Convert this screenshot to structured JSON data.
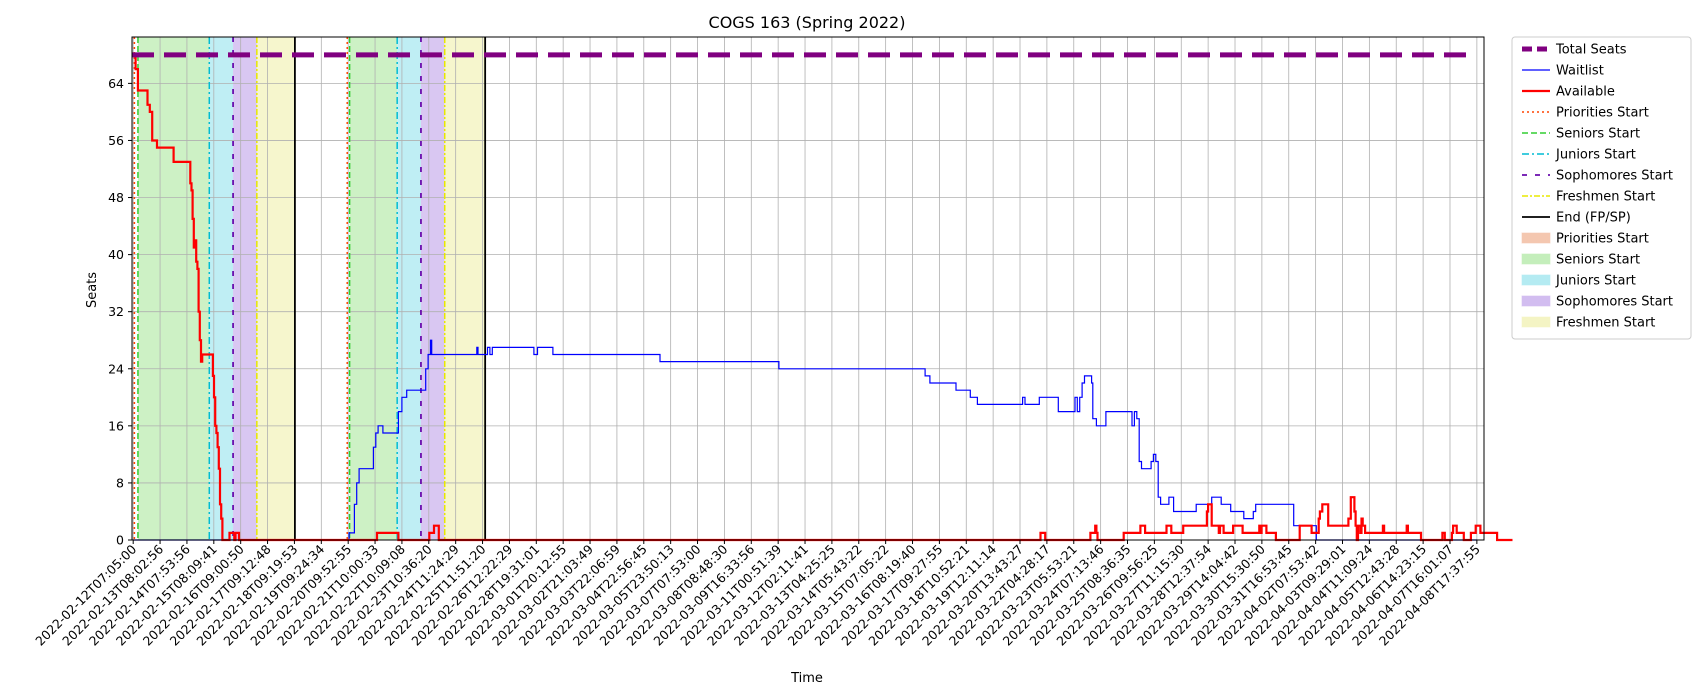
{
  "chart_data": {
    "type": "line",
    "title": "COGS 163 (Spring 2022)",
    "xlabel": "Time",
    "ylabel": "Seats",
    "ylim": [
      0,
      70.5
    ],
    "yticks": [
      0,
      8,
      16,
      24,
      32,
      40,
      48,
      56,
      64
    ],
    "xlim_days": [
      -0.05,
      56.8
    ],
    "x_start": "2022-02-12T07:05:00",
    "grid": true,
    "legend_position": "outside-right",
    "xtick_labels": [
      "2022-02-12T07:05:00",
      "2022-02-13T08:02:56",
      "2022-02-14T07:53:56",
      "2022-02-15T08:09:41",
      "2022-02-16T09:00:50",
      "2022-02-17T09:12:48",
      "2022-02-18T09:19:53",
      "2022-02-19T09:24:34",
      "2022-02-20T09:52:55",
      "2022-02-21T10:00:33",
      "2022-02-22T10:09:08",
      "2022-02-23T10:36:20",
      "2022-02-24T11:24:29",
      "2022-02-25T11:51:20",
      "2022-02-26T12:22:29",
      "2022-02-28T19:31:01",
      "2022-03-01T20:12:55",
      "2022-03-02T21:03:49",
      "2022-03-03T22:06:59",
      "2022-03-04T22:56:45",
      "2022-03-05T23:50:13",
      "2022-03-07T07:53:00",
      "2022-03-08T08:48:30",
      "2022-03-09T16:33:56",
      "2022-03-11T00:51:39",
      "2022-03-12T02:11:41",
      "2022-03-13T04:25:25",
      "2022-03-14T05:43:22",
      "2022-03-15T07:05:22",
      "2022-03-16T08:19:40",
      "2022-03-17T09:27:55",
      "2022-03-18T10:52:21",
      "2022-03-19T12:11:14",
      "2022-03-20T13:43:27",
      "2022-03-22T04:28:17",
      "2022-03-23T05:53:21",
      "2022-03-24T07:13:46",
      "2022-03-25T08:36:35",
      "2022-03-26T09:56:25",
      "2022-03-27T11:15:30",
      "2022-03-28T12:37:54",
      "2022-03-29T14:04:42",
      "2022-03-30T15:30:50",
      "2022-03-31T16:53:45",
      "2022-04-02T07:53:42",
      "2022-04-03T09:29:01",
      "2022-04-04T11:09:24",
      "2022-04-05T12:43:28",
      "2022-04-06T14:23:15",
      "2022-04-07T16:01:07",
      "2022-04-08T17:37:55"
    ],
    "colors": {
      "total": "#800080",
      "waitlist": "#0000ff",
      "available": "#ff0000",
      "priorities": "#ff4500",
      "seniors": "#32cd32",
      "juniors": "#00bcd4",
      "sophomores": "#6a0dad",
      "freshmen": "#e8e800",
      "end": "#000000",
      "grid": "#b0b0b0"
    },
    "legend": [
      {
        "label": "Total Seats",
        "kind": "line",
        "color": "#800080",
        "dash": "10,5",
        "width": 5
      },
      {
        "label": "Waitlist",
        "kind": "line",
        "color": "#0000ff",
        "dash": "",
        "width": 1.2
      },
      {
        "label": "Available",
        "kind": "line",
        "color": "#ff0000",
        "dash": "",
        "width": 2.2
      },
      {
        "label": "Priorities Start",
        "kind": "line",
        "color": "#ff4500",
        "dash": "2,3",
        "width": 1.5
      },
      {
        "label": "Seniors Start",
        "kind": "line",
        "color": "#32cd32",
        "dash": "6,3",
        "width": 1.5
      },
      {
        "label": "Juniors Start",
        "kind": "line",
        "color": "#00bcd4",
        "dash": "7,3,2,3",
        "width": 1.5
      },
      {
        "label": "Sophomores Start",
        "kind": "line",
        "color": "#6a0dad",
        "dash": "5,8",
        "width": 1.8
      },
      {
        "label": "Freshmen Start",
        "kind": "line",
        "color": "#e8e800",
        "dash": "6,2,2,2",
        "width": 1.5
      },
      {
        "label": "End (FP/SP)",
        "kind": "line",
        "color": "#000000",
        "dash": "",
        "width": 1.8
      },
      {
        "label": "Priorities Start",
        "kind": "patch",
        "color": "#f4c7b0"
      },
      {
        "label": "Seniors Start",
        "kind": "patch",
        "color": "#c4eebb"
      },
      {
        "label": "Juniors Start",
        "kind": "patch",
        "color": "#b4ebf2"
      },
      {
        "label": "Sophomores Start",
        "kind": "patch",
        "color": "#d2bdf0"
      },
      {
        "label": "Freshmen Start",
        "kind": "patch",
        "color": "#f4f4c4"
      }
    ],
    "total_seats": 68,
    "shaded_periods": [
      {
        "name": "seniors",
        "start": 0.2,
        "end": 3.2,
        "color": "#c4eebb"
      },
      {
        "name": "juniors",
        "start": 3.2,
        "end": 4.2,
        "color": "#b4ebf2"
      },
      {
        "name": "sophomores",
        "start": 4.2,
        "end": 5.2,
        "color": "#d2bdf0"
      },
      {
        "name": "freshmen",
        "start": 5.2,
        "end": 6.8,
        "color": "#f4f4c4"
      },
      {
        "name": "seniors",
        "start": 9.1,
        "end": 11.1,
        "color": "#c4eebb"
      },
      {
        "name": "juniors",
        "start": 11.1,
        "end": 12.1,
        "color": "#b4ebf2"
      },
      {
        "name": "sophomores",
        "start": 12.1,
        "end": 13.1,
        "color": "#d2bdf0"
      },
      {
        "name": "freshmen",
        "start": 13.1,
        "end": 14.8,
        "color": "#f4f4c4"
      }
    ],
    "markers": [
      {
        "type": "priorities",
        "x": 0.05
      },
      {
        "type": "seniors",
        "x": 0.2
      },
      {
        "type": "juniors",
        "x": 3.2
      },
      {
        "type": "sophomores",
        "x": 4.2
      },
      {
        "type": "freshmen",
        "x": 5.2
      },
      {
        "type": "end",
        "x": 6.8
      },
      {
        "type": "priorities",
        "x": 9.0
      },
      {
        "type": "seniors",
        "x": 9.1
      },
      {
        "type": "juniors",
        "x": 11.1
      },
      {
        "type": "sophomores",
        "x": 12.1
      },
      {
        "type": "freshmen",
        "x": 13.1
      },
      {
        "type": "end",
        "x": 14.8
      }
    ],
    "series": [
      {
        "name": "Waitlist",
        "color": "#0000ff",
        "points": [
          [
            0,
            0
          ],
          [
            9.0,
            0
          ],
          [
            9.08,
            1
          ],
          [
            9.2,
            1
          ],
          [
            9.3,
            5
          ],
          [
            9.4,
            8
          ],
          [
            9.5,
            10
          ],
          [
            10.0,
            10
          ],
          [
            10.1,
            13
          ],
          [
            10.2,
            15
          ],
          [
            10.3,
            16
          ],
          [
            10.5,
            15
          ],
          [
            11.0,
            15
          ],
          [
            11.15,
            18
          ],
          [
            11.3,
            20
          ],
          [
            11.5,
            21
          ],
          [
            12.2,
            21
          ],
          [
            12.3,
            24
          ],
          [
            12.4,
            26
          ],
          [
            12.5,
            28
          ],
          [
            12.55,
            26
          ],
          [
            14.4,
            26
          ],
          [
            14.45,
            27
          ],
          [
            14.5,
            26
          ],
          [
            14.8,
            26
          ],
          [
            14.9,
            27
          ],
          [
            15.0,
            26
          ],
          [
            15.1,
            27
          ],
          [
            16.8,
            27
          ],
          [
            16.85,
            26
          ],
          [
            17.0,
            27
          ],
          [
            17.6,
            27
          ],
          [
            17.65,
            26
          ],
          [
            22.1,
            26
          ],
          [
            22.15,
            25
          ],
          [
            27.1,
            25
          ],
          [
            27.15,
            24
          ],
          [
            33.0,
            24
          ],
          [
            33.3,
            23
          ],
          [
            33.5,
            22
          ],
          [
            34.5,
            22
          ],
          [
            34.6,
            21
          ],
          [
            35.1,
            21
          ],
          [
            35.2,
            20
          ],
          [
            35.5,
            19
          ],
          [
            37.3,
            19
          ],
          [
            37.4,
            20
          ],
          [
            37.5,
            19
          ],
          [
            38.0,
            19
          ],
          [
            38.1,
            20
          ],
          [
            38.8,
            20
          ],
          [
            38.9,
            18
          ],
          [
            39.5,
            18
          ],
          [
            39.6,
            20
          ],
          [
            39.7,
            18
          ],
          [
            39.8,
            20
          ],
          [
            39.9,
            22
          ],
          [
            40.0,
            23
          ],
          [
            40.3,
            22
          ],
          [
            40.35,
            17
          ],
          [
            40.5,
            16
          ],
          [
            40.8,
            16
          ],
          [
            40.9,
            18
          ],
          [
            41.9,
            18
          ],
          [
            42.0,
            16
          ],
          [
            42.1,
            18
          ],
          [
            42.2,
            17
          ],
          [
            42.3,
            11
          ],
          [
            42.4,
            10
          ],
          [
            42.7,
            10
          ],
          [
            42.8,
            11
          ],
          [
            42.9,
            12
          ],
          [
            43.0,
            11
          ],
          [
            43.1,
            6
          ],
          [
            43.2,
            5
          ],
          [
            43.5,
            5
          ],
          [
            43.55,
            6
          ],
          [
            43.7,
            6
          ],
          [
            43.75,
            4
          ],
          [
            44.6,
            4
          ],
          [
            44.7,
            5
          ],
          [
            45.3,
            5
          ],
          [
            45.35,
            6
          ],
          [
            45.7,
            6
          ],
          [
            45.75,
            5
          ],
          [
            46.1,
            5
          ],
          [
            46.15,
            4
          ],
          [
            46.6,
            4
          ],
          [
            46.7,
            3
          ],
          [
            47.0,
            3
          ],
          [
            47.1,
            4
          ],
          [
            47.2,
            5
          ],
          [
            48.7,
            5
          ],
          [
            48.8,
            2
          ],
          [
            49.7,
            2
          ],
          [
            49.75,
            0
          ],
          [
            56.5,
            0
          ]
        ]
      },
      {
        "name": "Available",
        "color": "#ff0000",
        "points": [
          [
            0,
            68
          ],
          [
            0.1,
            66
          ],
          [
            0.2,
            63
          ],
          [
            0.5,
            63
          ],
          [
            0.6,
            61
          ],
          [
            0.7,
            60
          ],
          [
            0.8,
            56
          ],
          [
            0.9,
            56
          ],
          [
            1.0,
            55
          ],
          [
            1.6,
            55
          ],
          [
            1.7,
            53
          ],
          [
            2.3,
            53
          ],
          [
            2.4,
            50
          ],
          [
            2.45,
            49
          ],
          [
            2.5,
            45
          ],
          [
            2.55,
            41
          ],
          [
            2.6,
            42
          ],
          [
            2.65,
            39
          ],
          [
            2.7,
            38
          ],
          [
            2.75,
            32
          ],
          [
            2.8,
            28
          ],
          [
            2.85,
            25
          ],
          [
            2.9,
            26
          ],
          [
            3.3,
            26
          ],
          [
            3.35,
            23
          ],
          [
            3.4,
            20
          ],
          [
            3.45,
            16
          ],
          [
            3.5,
            15
          ],
          [
            3.55,
            13
          ],
          [
            3.6,
            10
          ],
          [
            3.65,
            5
          ],
          [
            3.7,
            3
          ],
          [
            3.75,
            0
          ],
          [
            4.0,
            0
          ],
          [
            4.05,
            1
          ],
          [
            4.2,
            1
          ],
          [
            4.25,
            0
          ],
          [
            4.3,
            1
          ],
          [
            4.4,
            1
          ],
          [
            4.45,
            0
          ],
          [
            10.2,
            0
          ],
          [
            10.25,
            1
          ],
          [
            11.1,
            1
          ],
          [
            11.15,
            0
          ],
          [
            12.4,
            0
          ],
          [
            12.45,
            1
          ],
          [
            12.6,
            1
          ],
          [
            12.65,
            2
          ],
          [
            12.8,
            2
          ],
          [
            12.85,
            0
          ],
          [
            38.1,
            0
          ],
          [
            38.15,
            1
          ],
          [
            38.3,
            1
          ],
          [
            38.35,
            0
          ],
          [
            40.2,
            0
          ],
          [
            40.25,
            1
          ],
          [
            40.4,
            1
          ],
          [
            40.45,
            2
          ],
          [
            40.5,
            1
          ],
          [
            40.55,
            0
          ],
          [
            41.6,
            0
          ],
          [
            41.65,
            1
          ],
          [
            42.3,
            1
          ],
          [
            42.35,
            2
          ],
          [
            42.5,
            2
          ],
          [
            42.55,
            1
          ],
          [
            43.4,
            1
          ],
          [
            43.45,
            2
          ],
          [
            43.6,
            2
          ],
          [
            43.65,
            1
          ],
          [
            44.1,
            1
          ],
          [
            44.15,
            2
          ],
          [
            45.1,
            2
          ],
          [
            45.15,
            4
          ],
          [
            45.2,
            5
          ],
          [
            45.3,
            5
          ],
          [
            45.35,
            2
          ],
          [
            45.6,
            2
          ],
          [
            45.65,
            1
          ],
          [
            45.7,
            2
          ],
          [
            45.8,
            2
          ],
          [
            45.85,
            1
          ],
          [
            46.2,
            1
          ],
          [
            46.25,
            2
          ],
          [
            46.6,
            2
          ],
          [
            46.65,
            1
          ],
          [
            47.3,
            1
          ],
          [
            47.35,
            2
          ],
          [
            47.4,
            1
          ],
          [
            47.45,
            2
          ],
          [
            47.6,
            2
          ],
          [
            47.65,
            1
          ],
          [
            48.0,
            1
          ],
          [
            48.05,
            0
          ],
          [
            49.0,
            0
          ],
          [
            49.05,
            2
          ],
          [
            49.5,
            2
          ],
          [
            49.55,
            1
          ],
          [
            49.8,
            1
          ],
          [
            49.85,
            3
          ],
          [
            49.9,
            4
          ],
          [
            50.0,
            5
          ],
          [
            50.2,
            5
          ],
          [
            50.25,
            2
          ],
          [
            51.0,
            2
          ],
          [
            51.1,
            3
          ],
          [
            51.2,
            6
          ],
          [
            51.3,
            6
          ],
          [
            51.35,
            4
          ],
          [
            51.4,
            2
          ],
          [
            51.45,
            0
          ],
          [
            51.5,
            2
          ],
          [
            51.6,
            1
          ],
          [
            51.65,
            3
          ],
          [
            51.7,
            2
          ],
          [
            51.75,
            2
          ],
          [
            51.8,
            1
          ],
          [
            52.5,
            1
          ],
          [
            52.55,
            2
          ],
          [
            52.6,
            1
          ],
          [
            53.5,
            1
          ],
          [
            53.55,
            2
          ],
          [
            53.6,
            1
          ],
          [
            54.1,
            1
          ],
          [
            54.15,
            0
          ],
          [
            55.0,
            0
          ],
          [
            55.05,
            1
          ],
          [
            55.1,
            1
          ],
          [
            55.15,
            0
          ],
          [
            55.4,
            0
          ],
          [
            55.45,
            1
          ],
          [
            55.5,
            2
          ],
          [
            55.6,
            2
          ],
          [
            55.65,
            1
          ],
          [
            55.9,
            1
          ],
          [
            55.95,
            0
          ],
          [
            56.2,
            0
          ],
          [
            56.25,
            1
          ],
          [
            56.4,
            1
          ],
          [
            56.45,
            2
          ],
          [
            56.6,
            2
          ],
          [
            56.65,
            1
          ],
          [
            57.3,
            1
          ],
          [
            57.35,
            0
          ],
          [
            58.0,
            0
          ]
        ]
      }
    ]
  }
}
